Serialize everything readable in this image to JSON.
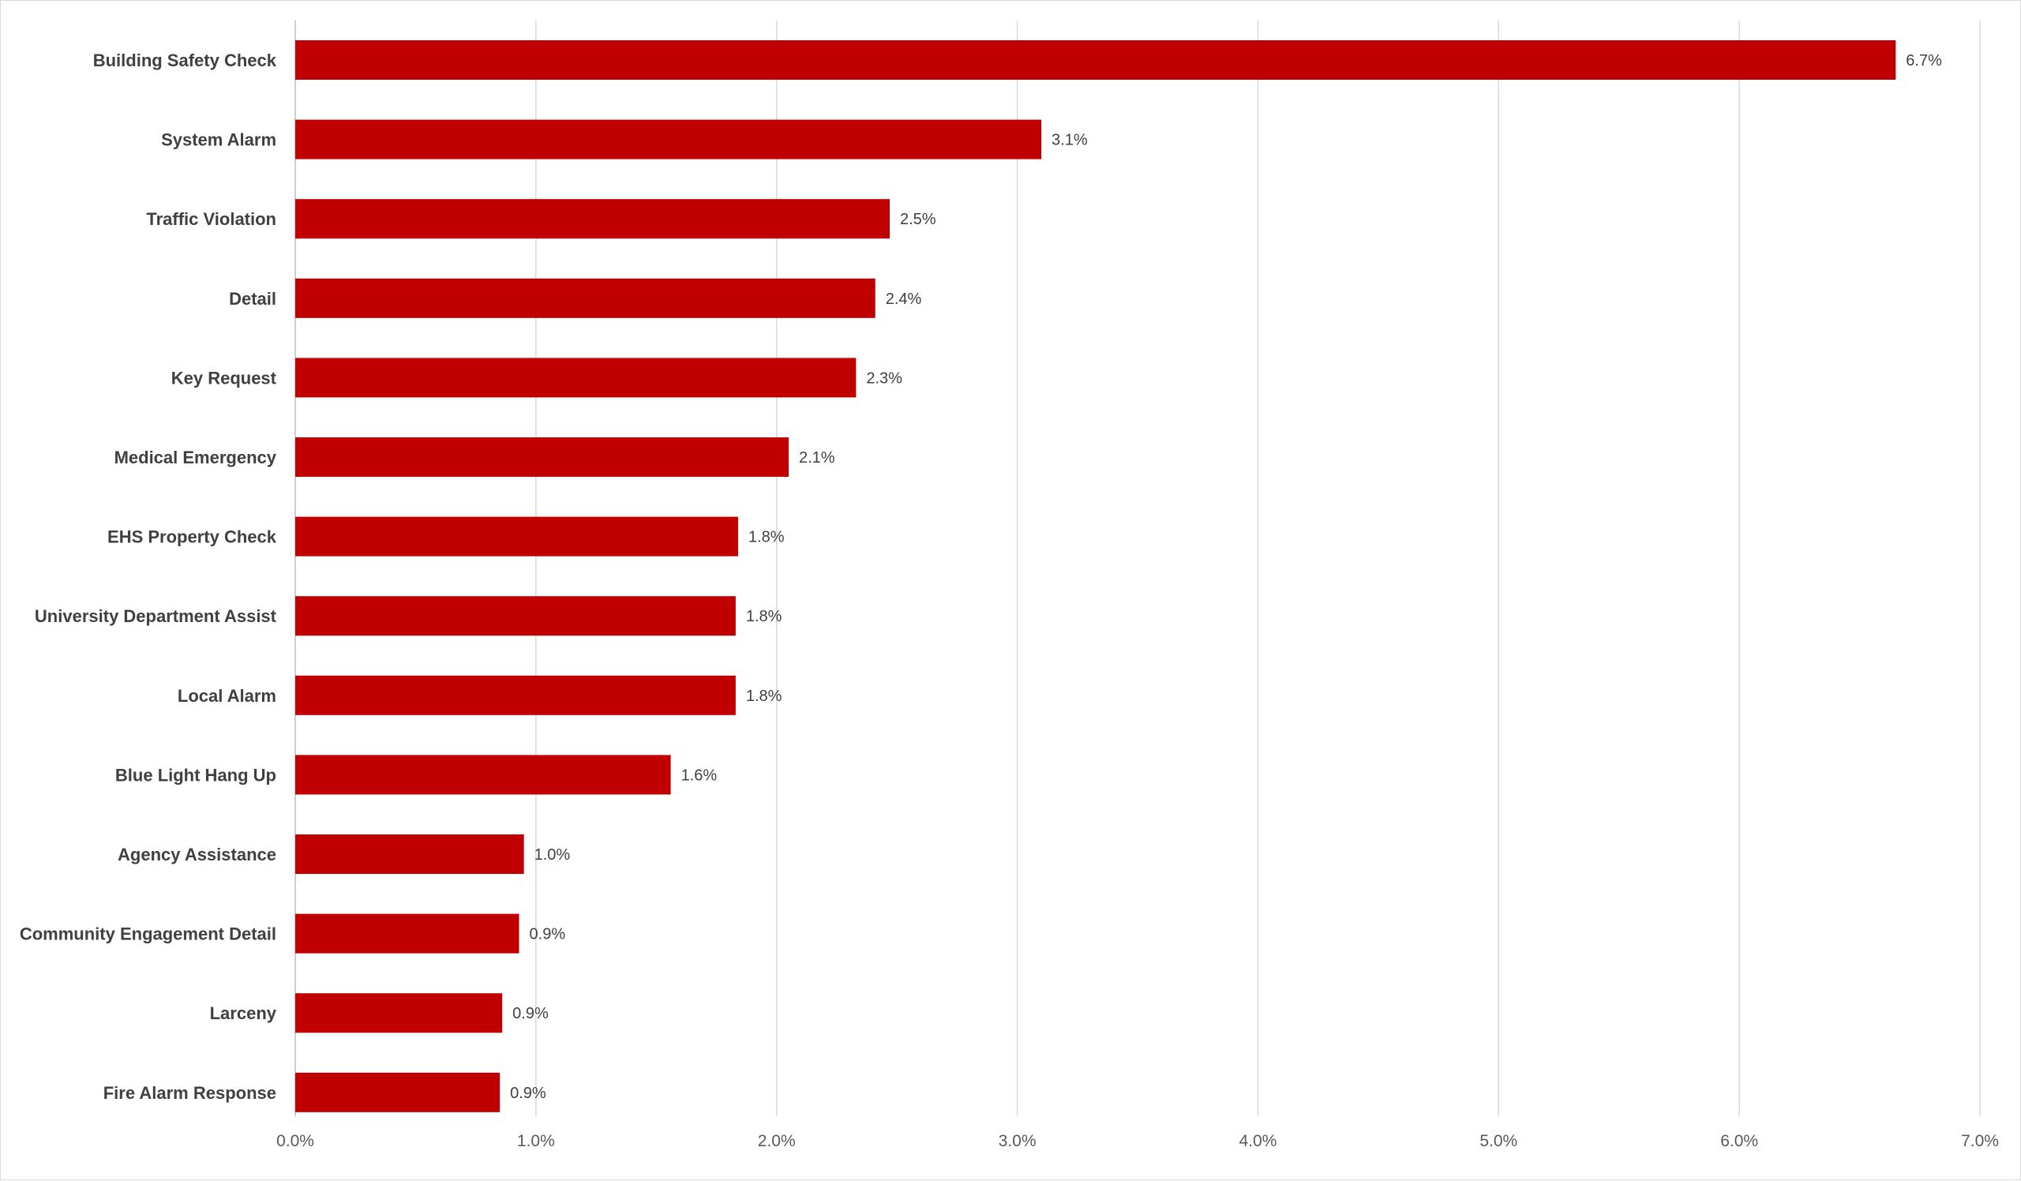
{
  "chart_data": {
    "type": "bar",
    "orientation": "horizontal",
    "categories": [
      "Building Safety Check",
      "System Alarm",
      "Traffic Violation",
      "Detail",
      "Key Request",
      "Medical Emergency",
      "EHS Property Check",
      "University Department Assist",
      "Local Alarm",
      "Blue Light Hang Up",
      "Agency Assistance",
      "Community Engagement Detail",
      "Larceny",
      "Fire Alarm Response"
    ],
    "values": [
      6.65,
      3.1,
      2.47,
      2.41,
      2.33,
      2.05,
      1.84,
      1.83,
      1.83,
      1.56,
      0.95,
      0.93,
      0.86,
      0.85
    ],
    "data_labels": [
      "6.7%",
      "3.1%",
      "2.5%",
      "2.4%",
      "2.3%",
      "2.1%",
      "1.8%",
      "1.8%",
      "1.8%",
      "1.6%",
      "1.0%",
      "0.9%",
      "0.9%",
      "0.9%"
    ],
    "x_ticks": [
      "0.0%",
      "1.0%",
      "2.0%",
      "3.0%",
      "4.0%",
      "5.0%",
      "6.0%",
      "7.0%"
    ],
    "xlim": [
      0,
      7
    ],
    "title": "",
    "xlabel": "",
    "ylabel": "",
    "grid": "vertical",
    "legend": "none",
    "bar_color": "#c00000"
  }
}
